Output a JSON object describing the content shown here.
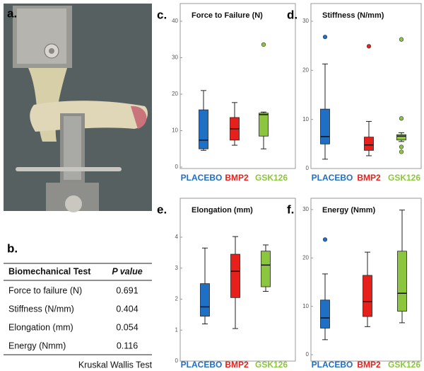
{
  "panels": {
    "a": "a.",
    "b": "b."
  },
  "table": {
    "header": [
      "Biomechanical Test",
      "P value"
    ],
    "rows": [
      [
        "Force to failure (N)",
        "0.691"
      ],
      [
        "Stiffness (N/mm)",
        "0.404"
      ],
      [
        "Elongation (mm)",
        "0.054"
      ],
      [
        "Energy (Nmm)",
        "0.116"
      ]
    ],
    "note": "Kruskal Wallis Test"
  },
  "chart_data": [
    {
      "type": "box",
      "label": "c.",
      "title": "Force to Failure (N)",
      "categories": [
        "PLACEBO",
        "BMP2",
        "GSK126"
      ],
      "colors": [
        "#1f6fc5",
        "#e8201c",
        "#8cc63f"
      ],
      "ylim": [
        0,
        40
      ],
      "yticks": [
        0,
        10,
        20,
        30,
        40
      ],
      "boxes": [
        {
          "whislo": 4.6,
          "q1": 5,
          "med": 7.4,
          "q3": 15.7,
          "whishi": 21,
          "fliers": []
        },
        {
          "whislo": 6,
          "q1": 7.4,
          "med": 10.5,
          "q3": 13.6,
          "whishi": 17.7,
          "fliers": []
        },
        {
          "whislo": 5,
          "q1": 8.5,
          "med": 14.4,
          "q3": 14.8,
          "whishi": 15.1,
          "fliers": [
            33.6
          ]
        }
      ]
    },
    {
      "type": "box",
      "label": "d.",
      "title": "Stiffness (N/mm)",
      "categories": [
        "PLACEBO",
        "BMP2",
        "GSK126"
      ],
      "colors": [
        "#1f6fc5",
        "#e8201c",
        "#8cc63f"
      ],
      "ylim": [
        0,
        30
      ],
      "yticks": [
        0,
        10,
        20,
        30
      ],
      "boxes": [
        {
          "whislo": 1.9,
          "q1": 5,
          "med": 6.5,
          "q3": 12.1,
          "whishi": 21.3,
          "fliers": [
            26.8
          ]
        },
        {
          "whislo": 2.6,
          "q1": 3.7,
          "med": 4.8,
          "q3": 6.4,
          "whishi": 9.6,
          "fliers": [
            24.9
          ]
        },
        {
          "whislo": 5.5,
          "q1": 5.8,
          "med": 6.6,
          "q3": 6.9,
          "whishi": 7.3,
          "fliers": [
            26.3,
            10.2,
            4.4,
            3.4
          ]
        }
      ]
    },
    {
      "type": "box",
      "label": "e.",
      "title": "Elongation (mm)",
      "categories": [
        "PLACEBO",
        "BMP2",
        "GSK126"
      ],
      "colors": [
        "#1f6fc5",
        "#e8201c",
        "#8cc63f"
      ],
      "ylim": [
        0,
        4
      ],
      "yticks": [
        0,
        1,
        2,
        3,
        4
      ],
      "boxes": [
        {
          "whislo": 1.2,
          "q1": 1.45,
          "med": 1.75,
          "q3": 2.5,
          "whishi": 3.65,
          "fliers": []
        },
        {
          "whislo": 1.05,
          "q1": 2.05,
          "med": 2.9,
          "q3": 3.45,
          "whishi": 4.02,
          "fliers": []
        },
        {
          "whislo": 2.25,
          "q1": 2.4,
          "med": 3.1,
          "q3": 3.55,
          "whishi": 3.75,
          "fliers": []
        }
      ]
    },
    {
      "type": "box",
      "label": "f.",
      "title": "Energy (Nmm)",
      "categories": [
        "PLACEBO",
        "BMP2",
        "GSK126"
      ],
      "colors": [
        "#1f6fc5",
        "#e8201c",
        "#8cc63f"
      ],
      "ylim": [
        0,
        30
      ],
      "yticks": [
        0,
        10,
        20,
        30
      ],
      "boxes": [
        {
          "whislo": 3.1,
          "q1": 5.5,
          "med": 7.6,
          "q3": 11.3,
          "whishi": 16.7,
          "fliers": [
            23.8
          ]
        },
        {
          "whislo": 5.8,
          "q1": 7.9,
          "med": 11,
          "q3": 16.4,
          "whishi": 21.2,
          "fliers": []
        },
        {
          "whislo": 6.6,
          "q1": 9,
          "med": 12.7,
          "q3": 21.4,
          "whishi": 29.9,
          "fliers": []
        }
      ]
    }
  ]
}
